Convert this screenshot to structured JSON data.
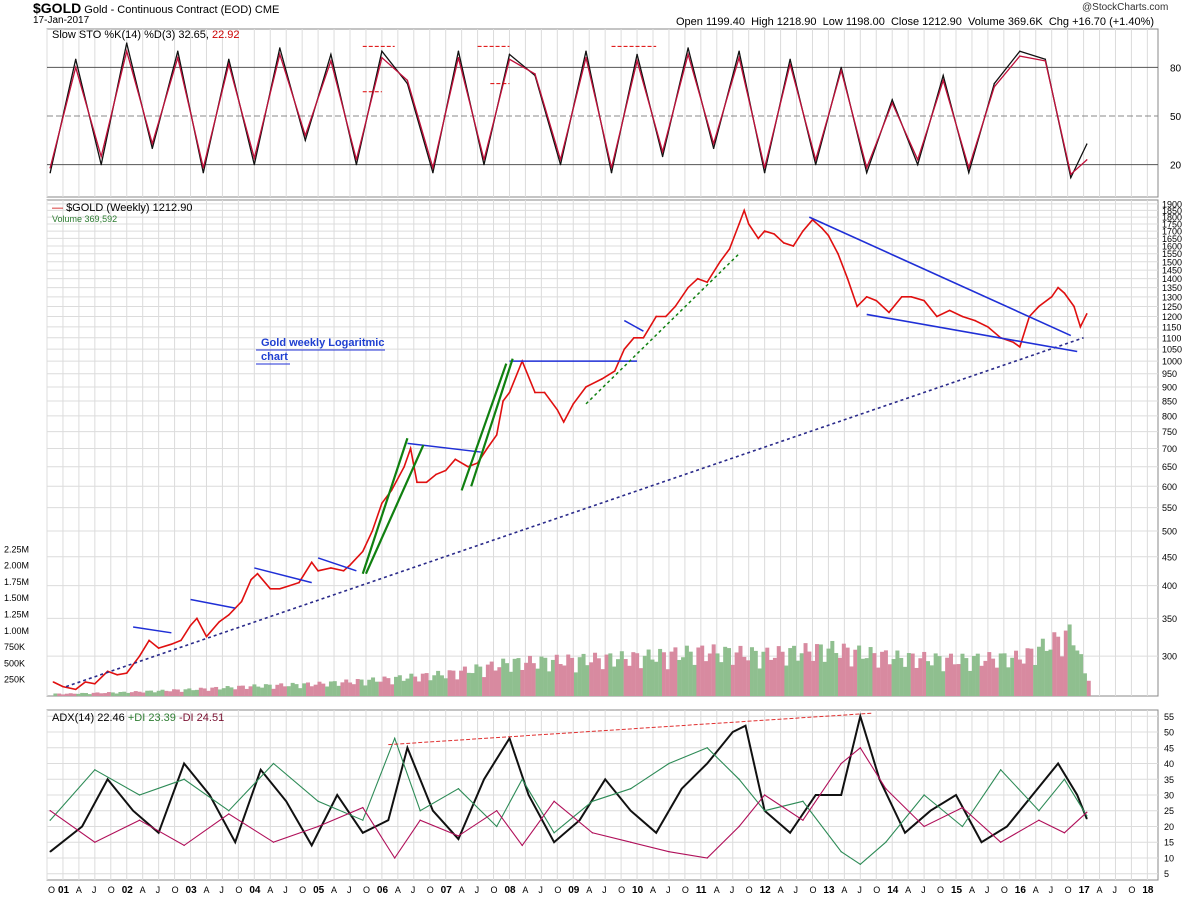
{
  "header": {
    "ticker": "$GOLD",
    "name": "Gold - Continuous Contract (EOD)",
    "exchange": "CME",
    "date": "17-Jan-2017",
    "quote": {
      "open_label": "Open",
      "open": "1199.40",
      "high_label": "High",
      "high": "1218.90",
      "low_label": "Low",
      "low": "1198.00",
      "close_label": "Close",
      "close": "1212.90",
      "volume_label": "Volume",
      "volume": "369.6K",
      "chg_label": "Chg",
      "chg": "+16.70 (+1.40%)"
    },
    "watermark": "@StockCharts.com"
  },
  "legends": {
    "sto_name": "Slow STO %K(14) %D(3)",
    "sto_k": "32.65",
    "sto_d": "22.92",
    "price_name": "$GOLD (Weekly)",
    "price_value": "1212.90",
    "volume_name": "Volume",
    "volume_value": "369,592",
    "adx_name": "ADX(14)",
    "adx_value": "22.46",
    "pdi_name": "+DI",
    "pdi_value": "23.39",
    "mdi_name": "-DI",
    "mdi_value": "24.51"
  },
  "annotation": {
    "line1": "Gold weekly Logaritmic",
    "line2": "chart"
  },
  "colors": {
    "price": "#e01010",
    "sto_k": "#111111",
    "sto_d": "#c0103a",
    "adx": "#111111",
    "pdi": "#2e8b57",
    "mdi": "#b0105a",
    "volume_up": "#8fbf8f",
    "volume_down": "#d88aa0",
    "trend_blue": "#1f2fd6",
    "trend_green": "#108010",
    "trend_dotted": "#2a2a8a",
    "grid": "#dcdcdc",
    "panel_bg": "#ffffff"
  },
  "chart_data": {
    "type": "line",
    "x_axis": {
      "year_labels": [
        "01",
        "02",
        "03",
        "04",
        "05",
        "06",
        "07",
        "08",
        "09",
        "10",
        "11",
        "12",
        "13",
        "14",
        "15",
        "16",
        "17",
        "18"
      ],
      "month_labels": [
        "O",
        "A",
        "J",
        "O"
      ],
      "range": [
        "2000-10",
        "2018-03"
      ]
    },
    "price_panel": {
      "scale": "log",
      "y_ticks": [
        300,
        350,
        400,
        450,
        500,
        550,
        600,
        650,
        700,
        750,
        800,
        850,
        900,
        950,
        1000,
        1050,
        1100,
        1150,
        1200,
        1250,
        1300,
        1350,
        1400,
        1450,
        1500,
        1550,
        1600,
        1650,
        1700,
        1750,
        1800,
        1850,
        1900
      ],
      "ylim": [
        255,
        1930
      ],
      "series": {
        "name": "$GOLD (Weekly)",
        "x": [
          2000.85,
          2001.0,
          2001.2,
          2001.35,
          2001.5,
          2001.7,
          2001.85,
          2002.0,
          2002.2,
          2002.35,
          2002.5,
          2002.7,
          2002.85,
          2003.0,
          2003.1,
          2003.25,
          2003.45,
          2003.6,
          2003.8,
          2003.95,
          2004.05,
          2004.25,
          2004.4,
          2004.55,
          2004.7,
          2004.9,
          2005.0,
          2005.2,
          2005.4,
          2005.5,
          2005.7,
          2005.85,
          2006.0,
          2006.15,
          2006.35,
          2006.45,
          2006.55,
          2006.7,
          2006.85,
          2007.0,
          2007.15,
          2007.35,
          2007.5,
          2007.65,
          2007.8,
          2007.9,
          2008.0,
          2008.2,
          2008.4,
          2008.55,
          2008.75,
          2008.85,
          2009.0,
          2009.2,
          2009.45,
          2009.65,
          2009.8,
          2009.95,
          2010.1,
          2010.3,
          2010.45,
          2010.6,
          2010.8,
          2010.95,
          2011.1,
          2011.3,
          2011.45,
          2011.6,
          2011.68,
          2011.75,
          2011.9,
          2012.0,
          2012.15,
          2012.3,
          2012.45,
          2012.6,
          2012.75,
          2012.9,
          2013.0,
          2013.15,
          2013.3,
          2013.45,
          2013.6,
          2013.75,
          2013.95,
          2014.15,
          2014.3,
          2014.5,
          2014.7,
          2014.9,
          2015.1,
          2015.3,
          2015.5,
          2015.7,
          2015.9,
          2016.0,
          2016.15,
          2016.3,
          2016.5,
          2016.6,
          2016.7,
          2016.85,
          2016.95,
          2017.05
        ],
        "y": [
          270,
          265,
          262,
          270,
          268,
          282,
          278,
          280,
          300,
          320,
          310,
          315,
          320,
          340,
          350,
          325,
          345,
          355,
          375,
          410,
          420,
          395,
          395,
          400,
          405,
          440,
          425,
          430,
          425,
          435,
          460,
          500,
          560,
          590,
          650,
          700,
          610,
          610,
          630,
          640,
          670,
          650,
          660,
          700,
          740,
          850,
          880,
          1000,
          880,
          880,
          820,
          780,
          840,
          900,
          930,
          960,
          1050,
          1100,
          1100,
          1200,
          1200,
          1250,
          1350,
          1400,
          1380,
          1500,
          1580,
          1750,
          1850,
          1750,
          1650,
          1700,
          1680,
          1620,
          1600,
          1700,
          1780,
          1720,
          1670,
          1550,
          1400,
          1250,
          1300,
          1280,
          1220,
          1300,
          1300,
          1280,
          1200,
          1230,
          1200,
          1180,
          1150,
          1100,
          1080,
          1060,
          1200,
          1250,
          1300,
          1350,
          1320,
          1250,
          1150,
          1212.9
        ]
      },
      "volume": {
        "name": "Volume",
        "y_ticks": [
          "250K",
          "500K",
          "750K",
          "1.00M",
          "1.25M",
          "1.50M",
          "1.75M",
          "2.00M",
          "2.25M"
        ],
        "ylim": [
          0,
          2300000
        ],
        "x": [
          2001.0,
          2002.0,
          2003.0,
          2004.0,
          2005.0,
          2006.0,
          2007.0,
          2008.0,
          2009.0,
          2010.0,
          2011.0,
          2012.0,
          2013.0,
          2014.0,
          2015.0,
          2016.0,
          2016.8,
          2017.0
        ],
        "y": [
          40000,
          70000,
          120000,
          180000,
          220000,
          300000,
          400000,
          600000,
          650000,
          700000,
          800000,
          750000,
          850000,
          700000,
          650000,
          700000,
          1150000,
          369592
        ]
      }
    },
    "stochastic_panel": {
      "y_ticks": [
        20,
        50,
        80
      ],
      "ylim": [
        0,
        100
      ],
      "series": [
        {
          "name": "%K",
          "x": [
            2000.8,
            2001.2,
            2001.6,
            2002.0,
            2002.4,
            2002.8,
            2003.2,
            2003.6,
            2004.0,
            2004.4,
            2004.8,
            2005.2,
            2005.6,
            2006.0,
            2006.4,
            2006.8,
            2007.2,
            2007.6,
            2008.0,
            2008.4,
            2008.8,
            2009.2,
            2009.6,
            2010.0,
            2010.4,
            2010.8,
            2011.2,
            2011.6,
            2012.0,
            2012.4,
            2012.8,
            2013.2,
            2013.6,
            2014.0,
            2014.4,
            2014.8,
            2015.2,
            2015.6,
            2016.0,
            2016.4,
            2016.8,
            2017.05
          ],
          "values": [
            15,
            85,
            20,
            95,
            30,
            90,
            15,
            85,
            20,
            92,
            35,
            88,
            20,
            90,
            70,
            15,
            90,
            20,
            88,
            75,
            20,
            90,
            15,
            88,
            25,
            92,
            30,
            90,
            15,
            85,
            20,
            80,
            15,
            60,
            20,
            75,
            15,
            70,
            90,
            85,
            12,
            32.65
          ]
        },
        {
          "name": "%D",
          "x": [
            2000.8,
            2001.2,
            2001.6,
            2002.0,
            2002.4,
            2002.8,
            2003.2,
            2003.6,
            2004.0,
            2004.4,
            2004.8,
            2005.2,
            2005.6,
            2006.0,
            2006.4,
            2006.8,
            2007.2,
            2007.6,
            2008.0,
            2008.4,
            2008.8,
            2009.2,
            2009.6,
            2010.0,
            2010.4,
            2010.8,
            2011.2,
            2011.6,
            2012.0,
            2012.4,
            2012.8,
            2013.2,
            2013.6,
            2014.0,
            2014.4,
            2014.8,
            2015.2,
            2015.6,
            2016.0,
            2016.4,
            2016.8,
            2017.05
          ],
          "values": [
            18,
            80,
            25,
            90,
            33,
            86,
            18,
            82,
            24,
            88,
            38,
            84,
            23,
            86,
            72,
            18,
            86,
            23,
            85,
            76,
            23,
            86,
            18,
            84,
            28,
            88,
            33,
            86,
            18,
            82,
            23,
            78,
            18,
            58,
            23,
            72,
            18,
            68,
            87,
            84,
            14,
            22.92
          ]
        }
      ]
    },
    "adx_panel": {
      "y_ticks": [
        5,
        10,
        15,
        20,
        25,
        30,
        35,
        40,
        45,
        50,
        55
      ],
      "ylim": [
        3,
        57
      ],
      "series": [
        {
          "name": "ADX(14)",
          "x": [
            2000.8,
            2001.3,
            2001.7,
            2002.1,
            2002.5,
            2002.9,
            2003.3,
            2003.7,
            2004.1,
            2004.5,
            2004.9,
            2005.3,
            2005.7,
            2006.1,
            2006.4,
            2006.8,
            2007.2,
            2007.6,
            2008.0,
            2008.3,
            2008.7,
            2009.1,
            2009.5,
            2009.9,
            2010.3,
            2010.7,
            2011.1,
            2011.5,
            2011.7,
            2012.0,
            2012.4,
            2012.8,
            2013.2,
            2013.5,
            2013.8,
            2014.2,
            2014.6,
            2015.0,
            2015.4,
            2015.8,
            2016.2,
            2016.6,
            2016.9,
            2017.05
          ],
          "values": [
            12,
            20,
            35,
            25,
            18,
            40,
            30,
            15,
            38,
            28,
            14,
            30,
            18,
            22,
            45,
            25,
            16,
            35,
            48,
            30,
            15,
            22,
            35,
            25,
            18,
            32,
            40,
            50,
            52,
            25,
            18,
            30,
            30,
            55,
            35,
            18,
            25,
            30,
            15,
            20,
            30,
            40,
            30,
            22.46
          ]
        },
        {
          "name": "+DI",
          "x": [
            2000.8,
            2001.5,
            2002.2,
            2002.9,
            2003.6,
            2004.3,
            2005.0,
            2005.7,
            2006.2,
            2006.6,
            2007.2,
            2007.8,
            2008.2,
            2008.7,
            2009.3,
            2009.9,
            2010.5,
            2011.1,
            2011.6,
            2012.0,
            2012.6,
            2013.2,
            2013.5,
            2013.9,
            2014.5,
            2015.1,
            2015.7,
            2016.3,
            2016.7,
            2017.05
          ],
          "values": [
            22,
            38,
            30,
            35,
            25,
            40,
            28,
            22,
            48,
            25,
            32,
            20,
            35,
            18,
            28,
            32,
            40,
            45,
            35,
            25,
            28,
            12,
            8,
            15,
            30,
            20,
            38,
            25,
            35,
            23.39
          ]
        },
        {
          "name": "-DI",
          "x": [
            2000.8,
            2001.5,
            2002.2,
            2002.9,
            2003.6,
            2004.3,
            2005.0,
            2005.7,
            2006.2,
            2006.6,
            2007.2,
            2007.8,
            2008.2,
            2008.7,
            2009.3,
            2009.9,
            2010.5,
            2011.1,
            2011.6,
            2012.0,
            2012.6,
            2013.2,
            2013.5,
            2013.9,
            2014.5,
            2015.1,
            2015.7,
            2016.3,
            2016.7,
            2017.05
          ],
          "values": [
            25,
            15,
            22,
            14,
            24,
            15,
            20,
            26,
            10,
            22,
            17,
            25,
            14,
            28,
            18,
            15,
            12,
            10,
            20,
            30,
            22,
            40,
            45,
            32,
            20,
            26,
            15,
            22,
            18,
            24.51
          ]
        }
      ]
    }
  }
}
